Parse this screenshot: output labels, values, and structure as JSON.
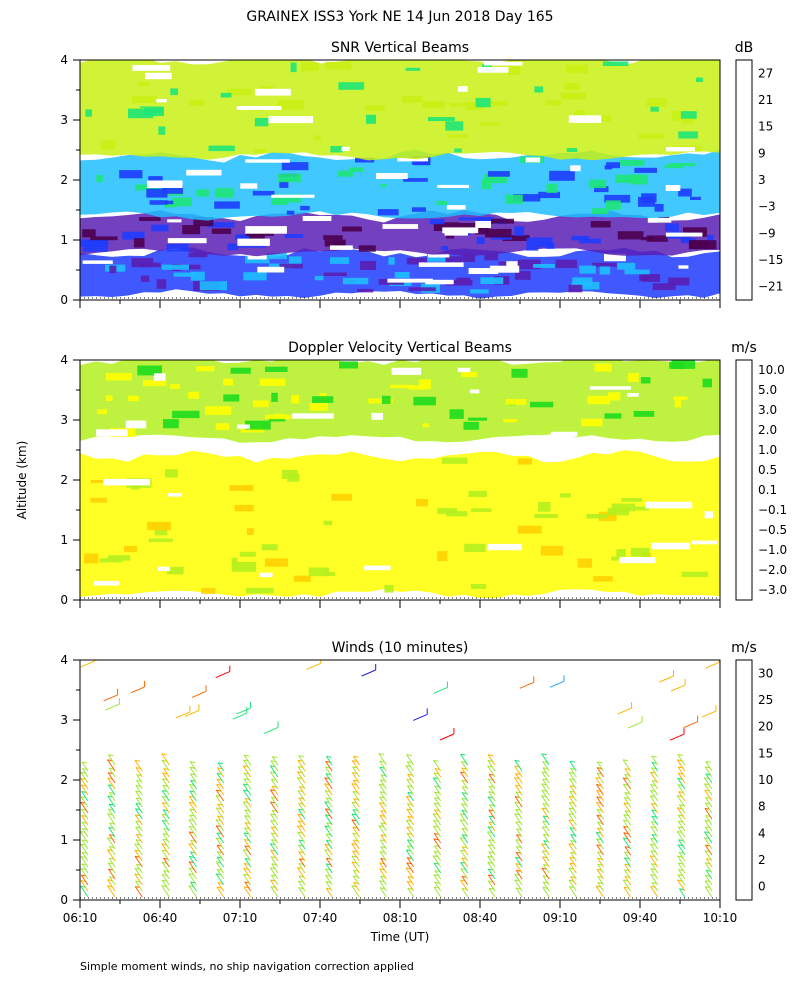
{
  "page": {
    "title": "GRAINEX ISS3 York NE  14 Jun 2018 Day 165",
    "y_axis_label": "Altitude (km)",
    "x_axis_label": "Time (UT)",
    "footnote": "Simple moment winds, no ship navigation correction applied"
  },
  "chart_data": [
    {
      "type": "heatmap",
      "title": "SNR Vertical Beams",
      "ylabel": "Altitude (km)",
      "ylim": [
        0,
        4
      ],
      "yticks": [
        0,
        1,
        2,
        3,
        4
      ],
      "x_tick_labels": [],
      "colorbar": {
        "unit": "dB",
        "levels": [
          "27",
          "21",
          "15",
          "9",
          "3",
          "−3",
          "−9",
          "−15",
          "−21"
        ],
        "colors": [
          "#ffbf00",
          "#ff7f00",
          "#ff1e1e",
          "#4b0050",
          "#5a1eb4",
          "#1e3cff",
          "#1ebeff",
          "#1ee678",
          "#c8f014"
        ]
      },
      "layers_by_altitude": [
        {
          "from_km": 0.1,
          "to_km": 0.8,
          "level": "−3"
        },
        {
          "from_km": 0.8,
          "to_km": 1.4,
          "level": "3"
        },
        {
          "from_km": 1.4,
          "to_km": 2.4,
          "level": "−9"
        },
        {
          "from_km": 2.4,
          "to_km": 4.0,
          "level": "−21"
        }
      ]
    },
    {
      "type": "heatmap",
      "title": "Doppler Velocity Vertical Beams",
      "ylabel": "Altitude (km)",
      "ylim": [
        0,
        4
      ],
      "yticks": [
        0,
        1,
        2,
        3,
        4
      ],
      "x_tick_labels": [],
      "colorbar": {
        "unit": "m/s",
        "levels": [
          "10.0",
          "5.0",
          "3.0",
          "2.0",
          "1.0",
          "0.5",
          "0.1",
          "−0.1",
          "−0.5",
          "−1.0",
          "−2.0",
          "−3.0"
        ],
        "colors": [
          "#280028",
          "#5a0078",
          "#2800c8",
          "#0050ff",
          "#00a0ff",
          "#1edc1e",
          "#b4f01e",
          "#ffff00",
          "#ffd200",
          "#ffa000",
          "#ff6400",
          "#ff1414"
        ]
      },
      "layers_by_altitude": [
        {
          "from_km": 0.1,
          "to_km": 2.4,
          "level": "−0.1"
        },
        {
          "from_km": 2.7,
          "to_km": 4.0,
          "level": "0.1"
        }
      ]
    },
    {
      "type": "scatter",
      "title": "Winds (10 minutes)",
      "ylabel": "Altitude (km)",
      "xlabel": "Time (UT)",
      "ylim": [
        0,
        4
      ],
      "yticks": [
        0,
        1,
        2,
        3,
        4
      ],
      "x_tick_labels": [
        "06:10",
        "06:40",
        "07:10",
        "07:40",
        "08:10",
        "08:40",
        "09:10",
        "09:40",
        "10:10"
      ],
      "colorbar": {
        "unit": "m/s",
        "levels": [
          "30",
          "25",
          "20",
          "15",
          "10",
          "8",
          "4",
          "2",
          "0"
        ],
        "colors": [
          "#ff0000",
          "#ff6400",
          "#ffb400",
          "#a0e632",
          "#1ee678",
          "#1eaaff",
          "#1e1edc",
          "#5a0064",
          "#000000"
        ]
      },
      "wind_profiles": {
        "interval_minutes": 10,
        "start": "06:10",
        "end": "10:10",
        "top_of_profile_km": 2.4,
        "dominant_speed_m_s": 15
      }
    }
  ]
}
